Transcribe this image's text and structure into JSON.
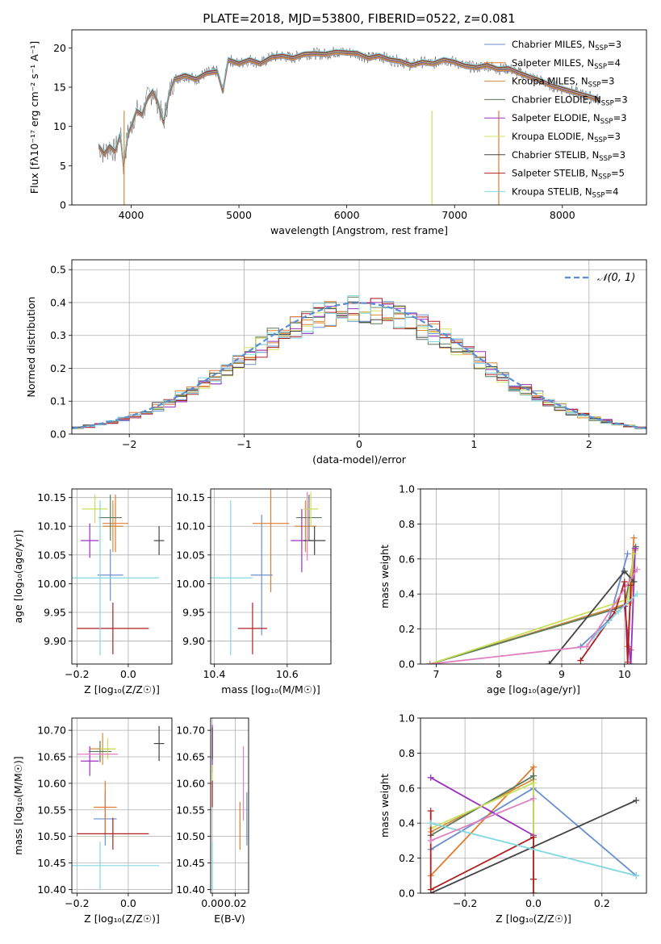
{
  "chart_data": [
    {
      "id": "spectrum",
      "type": "line",
      "title": "PLATE=2018, MJD=53800, FIBERID=0522, z=0.081",
      "xlabel": "wavelength [Angstrom, rest frame]",
      "ylabel": "Flux [fλ10⁻¹⁷ erg cm⁻² s⁻¹ A⁻¹]",
      "xlim": [
        3450,
        8780
      ],
      "ylim": [
        0,
        22.3
      ],
      "xticks": [
        4000,
        5000,
        6000,
        7000,
        8000
      ],
      "yticks": [
        0,
        5,
        10,
        15,
        20
      ],
      "legend_position": "top-right",
      "series": [
        {
          "name": "Chabrier MILES, N_SSP=3",
          "label_main": "Chabrier MILES, N",
          "label_sub": "SSP",
          "label_tail": "=3",
          "color": "#6a8fd0"
        },
        {
          "name": "Salpeter MILES, N_SSP=4",
          "label_main": "Salpeter MILES, N",
          "label_sub": "SSP",
          "label_tail": "=4",
          "color": "#e07b2f"
        },
        {
          "name": "Kroupa MILES, N_SSP=3",
          "label_main": "Kroupa MILES, N",
          "label_sub": "SSP",
          "label_tail": "=3",
          "color": "#d28c3c"
        },
        {
          "name": "Chabrier ELODIE, N_SSP=3",
          "label_main": "Chabrier ELODIE, N",
          "label_sub": "SSP",
          "label_tail": "=3",
          "color": "#5a7a5a"
        },
        {
          "name": "Salpeter ELODIE, N_SSP=3",
          "label_main": "Salpeter ELODIE, N",
          "label_sub": "SSP",
          "label_tail": "=3",
          "color": "#9b30c0"
        },
        {
          "name": "Kroupa ELODIE, N_SSP=3",
          "label_main": "Kroupa ELODIE, N",
          "label_sub": "SSP",
          "label_tail": "=3",
          "color": "#d4e060"
        },
        {
          "name": "Chabrier STELIB, N_SSP=3",
          "label_main": "Chabrier STELIB, N",
          "label_sub": "SSP",
          "label_tail": "=3",
          "color": "#444444"
        },
        {
          "name": "Salpeter STELIB, N_SSP=5",
          "label_main": "Salpeter STELIB, N",
          "label_sub": "SSP",
          "label_tail": "=5",
          "color": "#b02020"
        },
        {
          "name": "Kroupa STELIB, N_SSP=4",
          "label_main": "Kroupa STELIB, N",
          "label_sub": "SSP",
          "label_tail": "=4",
          "color": "#80d8e0"
        }
      ],
      "data_series": {
        "name": "data",
        "color": "#555555",
        "x": [
          3700,
          3750,
          3800,
          3850,
          3900,
          3930,
          3970,
          4000,
          4050,
          4100,
          4150,
          4200,
          4250,
          4300,
          4350,
          4400,
          4500,
          4600,
          4700,
          4800,
          4850,
          4900,
          5000,
          5100,
          5200,
          5300,
          5400,
          5500,
          5600,
          5700,
          5800,
          5900,
          6000,
          6100,
          6200,
          6300,
          6400,
          6500,
          6600,
          6700,
          6800,
          6900,
          7000,
          7100,
          7200,
          7300,
          7400,
          7500,
          7600,
          7700,
          7800,
          7900,
          8000,
          8100,
          8200,
          8300,
          8350
        ],
        "y": [
          7.5,
          6.5,
          7.5,
          6.8,
          9,
          5,
          9,
          10,
          12,
          11.5,
          13.5,
          14.5,
          13,
          10.5,
          14,
          16,
          16.5,
          16,
          16.8,
          17,
          14.5,
          18.5,
          18,
          18.5,
          18,
          18.8,
          19,
          18.7,
          19.2,
          19.3,
          19.2,
          19.5,
          19.4,
          19.3,
          18.7,
          19,
          18.5,
          18.3,
          17.8,
          18.2,
          18,
          18.5,
          18.2,
          17.7,
          17.5,
          17.8,
          17.3,
          17.4,
          16.8,
          16.3,
          15.8,
          15.2,
          14.8,
          14.4,
          14,
          13.6,
          13.3
        ]
      }
    },
    {
      "id": "residuals",
      "type": "line",
      "xlabel": "(data-model)/error",
      "ylabel": "Normed distribution",
      "xlim": [
        -2.5,
        2.5
      ],
      "ylim": [
        0,
        0.53
      ],
      "xticks": [
        -2,
        -1,
        0,
        1,
        2
      ],
      "yticks": [
        0.0,
        0.1,
        0.2,
        0.3,
        0.4,
        0.5
      ],
      "legend_position": "top-right",
      "legend_label": "𝒩(0, 1)",
      "normal_curve": {
        "mean": 0,
        "sigma": 1,
        "color": "#5b8ed4",
        "style": "dashed"
      },
      "hist_bin_width": 0.1,
      "hist_offsets": [
        0.025,
        -0.022,
        0.015,
        -0.018,
        0.03,
        0.012,
        -0.028,
        0.02,
        -0.01
      ]
    },
    {
      "id": "age-vs-z",
      "type": "scatter",
      "xlabel": "Z [log₁₀(Z/Z☉)]",
      "ylabel": "age  [log₁₀(age/yr)]",
      "xlim": [
        -0.22,
        0.17
      ],
      "ylim": [
        9.86,
        10.165
      ],
      "xticks": [
        -0.2,
        0.0
      ],
      "yticks": [
        9.9,
        9.95,
        10.0,
        10.05,
        10.1,
        10.15
      ],
      "points": [
        {
          "series": "Chabrier MILES",
          "x": -0.07,
          "y": 10.015,
          "xerr": 0.05,
          "yerr": 0.045,
          "color": "#6a8fd0"
        },
        {
          "series": "Salpeter MILES",
          "x": -0.05,
          "y": 10.105,
          "xerr": 0.05,
          "yerr": 0.05,
          "color": "#e07b2f"
        },
        {
          "series": "Kroupa MILES",
          "x": -0.06,
          "y": 10.1,
          "xerr": 0.04,
          "yerr": 0.045,
          "color": "#d28c3c"
        },
        {
          "series": "Chabrier ELODIE",
          "x": -0.07,
          "y": 10.115,
          "xerr": 0.045,
          "yerr": 0.04,
          "color": "#5a7a5a"
        },
        {
          "series": "Salpeter ELODIE",
          "x": -0.15,
          "y": 10.075,
          "xerr": 0.035,
          "yerr": 0.03,
          "color": "#9b30c0"
        },
        {
          "series": "Kroupa ELODIE",
          "x": -0.13,
          "y": 10.13,
          "xerr": 0.05,
          "yerr": 0.025,
          "color": "#c8e05a"
        },
        {
          "series": "Chabrier STELIB",
          "x": 0.12,
          "y": 10.075,
          "xerr": 0.02,
          "yerr": 0.025,
          "color": "#444444"
        },
        {
          "series": "Salpeter STELIB",
          "x": -0.06,
          "y": 9.922,
          "xerr": 0.14,
          "yerr": 0.045,
          "color": "#b02020"
        },
        {
          "series": "Kroupa STELIB",
          "x": -0.11,
          "y": 10.01,
          "xerr": 0.23,
          "yerr": 0.135,
          "color": "#80d8e0"
        }
      ]
    },
    {
      "id": "age-vs-mass",
      "type": "scatter",
      "xlabel": "mass [log₁₀(M/M☉)]",
      "xlim": [
        10.39,
        10.72
      ],
      "ylim": [
        9.86,
        10.165
      ],
      "xticks": [
        10.4,
        10.6
      ],
      "yticks": [
        9.9,
        9.95,
        10.0,
        10.05,
        10.1,
        10.15
      ],
      "points": [
        {
          "series": "Chabrier MILES",
          "x": 10.53,
          "y": 10.015,
          "xerr": 0.03,
          "yerr": 0.105,
          "color": "#6a8fd0"
        },
        {
          "series": "Salpeter MILES",
          "x": 10.555,
          "y": 10.105,
          "xerr": 0.05,
          "yerr": 0.12,
          "color": "#e07b2f"
        },
        {
          "series": "Kroupa MILES",
          "x": 10.65,
          "y": 10.1,
          "xerr": 0.03,
          "yerr": 0.045,
          "color": "#d28c3c"
        },
        {
          "series": "Chabrier ELODIE",
          "x": 10.66,
          "y": 10.115,
          "xerr": 0.035,
          "yerr": 0.04,
          "color": "#5a7a5a"
        },
        {
          "series": "Salpeter ELODIE",
          "x": 10.64,
          "y": 10.075,
          "xerr": 0.03,
          "yerr": 0.055,
          "color": "#9b30c0"
        },
        {
          "series": "Kroupa ELODIE",
          "x": 10.665,
          "y": 10.13,
          "xerr": 0.02,
          "yerr": 0.03,
          "color": "#c8e05a"
        },
        {
          "series": "Chabrier STELIB",
          "x": 10.675,
          "y": 10.075,
          "xerr": 0.03,
          "yerr": 0.025,
          "color": "#444444"
        },
        {
          "series": "Salpeter STELIB",
          "x": 10.505,
          "y": 9.922,
          "xerr": 0.04,
          "yerr": 0.045,
          "color": "#b02020"
        },
        {
          "series": "Kroupa STELIB",
          "x": 10.445,
          "y": 10.01,
          "xerr": 0.06,
          "yerr": 0.135,
          "color": "#80d8e0"
        },
        {
          "series": "Salpeter ELODIE (pink)",
          "x": 10.655,
          "y": 10.1,
          "xerr": 0.0,
          "yerr": 0.06,
          "color": "#e080c0"
        }
      ]
    },
    {
      "id": "weight-vs-age",
      "type": "line",
      "xlabel": "age  [log₁₀(age/yr)]",
      "ylabel": "mass weight",
      "xlim": [
        6.75,
        10.35
      ],
      "ylim": [
        0,
        1.0
      ],
      "xticks": [
        7,
        8,
        9,
        10
      ],
      "yticks": [
        0.0,
        0.2,
        0.4,
        0.6,
        0.8,
        1.0
      ],
      "series": [
        {
          "name": "Chabrier MILES",
          "color": "#6a8fd0",
          "x": [
            9.3,
            9.75,
            10.05
          ],
          "y": [
            0.1,
            0.25,
            0.63
          ]
        },
        {
          "name": "Salpeter MILES",
          "color": "#e07b2f",
          "x": [
            10.15,
            10.05,
            10.1
          ],
          "y": [
            0.72,
            0.1,
            0.08
          ]
        },
        {
          "name": "Kroupa MILES",
          "color": "#d28c3c",
          "x": [
            6.9,
            10.1,
            10.17
          ],
          "y": [
            0.0,
            0.35,
            0.65
          ]
        },
        {
          "name": "Chabrier ELODIE",
          "color": "#5a7a5a",
          "x": [
            6.9,
            10.0,
            10.18
          ],
          "y": [
            0.0,
            0.33,
            0.67
          ]
        },
        {
          "name": "Salpeter ELODIE",
          "color": "#9b30c0",
          "x": [
            10.0,
            10.1,
            10.17
          ],
          "y": [
            0.33,
            0.0,
            0.66
          ]
        },
        {
          "name": "Kroupa ELODIE",
          "color": "#c8e05a",
          "x": [
            6.9,
            10.05,
            10.15
          ],
          "y": [
            0.0,
            0.37,
            0.63
          ]
        },
        {
          "name": "Chabrier STELIB",
          "color": "#444444",
          "x": [
            8.8,
            10.0,
            10.15
          ],
          "y": [
            0.0,
            0.53,
            0.47
          ]
        },
        {
          "name": "Salpeter STELIB",
          "color": "#b02020",
          "x": [
            9.3,
            9.85,
            10.0,
            10.05,
            10.1
          ],
          "y": [
            0.02,
            0.3,
            0.47,
            0.01,
            0.45
          ]
        },
        {
          "name": "Kroupa STELIB",
          "color": "#80d8e0",
          "x": [
            9.5,
            9.9,
            10.2
          ],
          "y": [
            0.15,
            0.3,
            0.4
          ]
        },
        {
          "name": "Pink",
          "color": "#e080c0",
          "x": [
            6.9,
            9.4,
            10.2
          ],
          "y": [
            0.0,
            0.1,
            0.54
          ]
        }
      ]
    },
    {
      "id": "mass-vs-z",
      "type": "scatter",
      "xlabel": "Z [log₁₀(Z/Z☉)]",
      "ylabel": "mass [log₁₀(M/M☉)]",
      "xlim": [
        -0.22,
        0.17
      ],
      "ylim": [
        10.393,
        10.723
      ],
      "xticks": [
        -0.2,
        0.0
      ],
      "yticks": [
        10.4,
        10.45,
        10.5,
        10.55,
        10.6,
        10.65,
        10.7
      ],
      "points": [
        {
          "series": "Chabrier MILES",
          "x": -0.09,
          "y": 10.533,
          "xerr": 0.045,
          "yerr": 0.05,
          "color": "#6a8fd0"
        },
        {
          "series": "Salpeter MILES",
          "x": -0.09,
          "y": 10.555,
          "xerr": 0.045,
          "yerr": 0.05,
          "color": "#e07b2f"
        },
        {
          "series": "Kroupa MILES",
          "x": -0.1,
          "y": 10.665,
          "xerr": 0.05,
          "yerr": 0.03,
          "color": "#d28c3c"
        },
        {
          "series": "Chabrier ELODIE",
          "x": -0.11,
          "y": 10.66,
          "xerr": 0.045,
          "yerr": 0.02,
          "color": "#5a7a5a"
        },
        {
          "series": "Salpeter ELODIE",
          "x": -0.15,
          "y": 10.642,
          "xerr": 0.035,
          "yerr": 0.028,
          "color": "#9b30c0"
        },
        {
          "series": "Kroupa ELODIE",
          "x": -0.08,
          "y": 10.665,
          "xerr": 0.03,
          "yerr": 0.02,
          "color": "#c8e05a"
        },
        {
          "series": "Chabrier STELIB",
          "x": 0.12,
          "y": 10.675,
          "xerr": 0.02,
          "yerr": 0.033,
          "color": "#444444"
        },
        {
          "series": "Salpeter STELIB",
          "x": -0.06,
          "y": 10.505,
          "xerr": 0.14,
          "yerr": 0.03,
          "color": "#b02020"
        },
        {
          "series": "Kroupa STELIB",
          "x": -0.11,
          "y": 10.445,
          "xerr": 0.23,
          "yerr": 0.045,
          "color": "#80d8e0"
        },
        {
          "series": "Pink",
          "x": -0.12,
          "y": 10.655,
          "xerr": 0.08,
          "yerr": 0.0,
          "color": "#e080c0"
        }
      ]
    },
    {
      "id": "mass-vs-ebv",
      "type": "scatter",
      "xlabel": "E(B-V)",
      "xlim": [
        -0.0015,
        0.0315
      ],
      "ylim": [
        10.393,
        10.723
      ],
      "xticks": [
        0.0,
        0.02
      ],
      "yticks": [
        10.4,
        10.45,
        10.5,
        10.55,
        10.6,
        10.65,
        10.7
      ],
      "points": [
        {
          "series": "Chabrier MILES",
          "x": 0.03,
          "y": 10.533,
          "yerr": 0.05,
          "color": "#6a8fd0"
        },
        {
          "series": "Salpeter MILES",
          "x": 0.024,
          "y": 10.52,
          "yerr": 0.045,
          "color": "#e07b2f"
        },
        {
          "series": "Pink",
          "x": 0.027,
          "y": 10.6,
          "yerr": 0.07,
          "color": "#e080c0"
        },
        {
          "series": "Salpeter ELODIE",
          "x": 0.0,
          "y": 10.665,
          "yerr": 0.045,
          "color": "#9b30c0"
        },
        {
          "series": "Kroupa ELODIE",
          "x": 0.0,
          "y": 10.615,
          "yerr": 0.02,
          "color": "#c8e05a"
        },
        {
          "series": "Chabrier STELIB",
          "x": 0.0,
          "y": 10.675,
          "yerr": 0.03,
          "color": "#444444"
        },
        {
          "series": "Salpeter STELIB",
          "x": 0.0,
          "y": 10.58,
          "yerr": 0.025,
          "color": "#b02020"
        },
        {
          "series": "Kroupa STELIB",
          "x": 0.0,
          "y": 10.445,
          "yerr": 0.045,
          "color": "#80d8e0"
        }
      ]
    },
    {
      "id": "weight-vs-z",
      "type": "line",
      "xlabel": "Z [log₁₀(Z/Z☉)]",
      "ylabel": "mass weight",
      "xlim": [
        -0.33,
        0.33
      ],
      "ylim": [
        0,
        1.0
      ],
      "xticks": [
        -0.2,
        0.0,
        0.2
      ],
      "yticks": [
        0.0,
        0.2,
        0.4,
        0.6,
        0.8,
        1.0
      ],
      "series": [
        {
          "name": "Chabrier MILES",
          "color": "#6a8fd0",
          "x": [
            -0.3,
            0.0,
            0.3
          ],
          "y": [
            0.25,
            0.6,
            0.1
          ]
        },
        {
          "name": "Salpeter MILES",
          "color": "#e07b2f",
          "x": [
            -0.3,
            0.0,
            0.0
          ],
          "y": [
            0.1,
            0.72,
            0.08
          ]
        },
        {
          "name": "Kroupa MILES",
          "color": "#d28c3c",
          "x": [
            -0.3,
            0.0
          ],
          "y": [
            0.35,
            0.65
          ]
        },
        {
          "name": "Chabrier ELODIE",
          "color": "#5a7a5a",
          "x": [
            -0.3,
            0.0,
            0.0
          ],
          "y": [
            0.33,
            0.67,
            0.0
          ]
        },
        {
          "name": "Salpeter ELODIE",
          "color": "#9b30c0",
          "x": [
            -0.3,
            0.0
          ],
          "y": [
            0.66,
            0.33
          ]
        },
        {
          "name": "Kroupa ELODIE",
          "color": "#c8e05a",
          "x": [
            -0.3,
            0.0,
            0.0
          ],
          "y": [
            0.37,
            0.63,
            0.0
          ]
        },
        {
          "name": "Chabrier STELIB",
          "color": "#444444",
          "x": [
            -0.3,
            0.3
          ],
          "y": [
            0.0,
            0.53
          ]
        },
        {
          "name": "Salpeter STELIB",
          "color": "#b02020",
          "x": [
            -0.3,
            -0.3,
            0.0,
            0.0,
            0.0
          ],
          "y": [
            0.47,
            0.02,
            0.32,
            0.0,
            0.08
          ]
        },
        {
          "name": "Kroupa STELIB",
          "color": "#80d8e0",
          "x": [
            -0.3,
            0.3
          ],
          "y": [
            0.4,
            0.1
          ]
        },
        {
          "name": "Pink",
          "color": "#e080c0",
          "x": [
            -0.3,
            0.0
          ],
          "y": [
            0.3,
            0.54
          ]
        }
      ]
    }
  ]
}
